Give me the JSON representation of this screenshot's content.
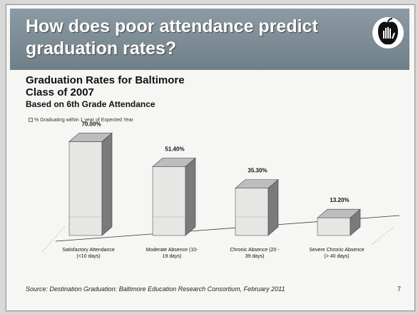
{
  "slide": {
    "title": "How does poor attendance predict graduation rates?",
    "source": "Source: Destination Graduation: Baltimore Education Research Consortium, February 2011",
    "page_number": "7"
  },
  "chart_data": {
    "type": "bar",
    "title": "Graduation Rates for Baltimore\nClass of 2007",
    "subtitle": "Based on 6th Grade Attendance",
    "legend": "% Graduating within 1 year of Expected Year",
    "categories": [
      "Satisfactory Attendance (<10 days)",
      "Moderate Absence (10- 19 days)",
      "Chronic Absence (20 - 39 days)",
      "Severe Chronic Absence (> 40 days)"
    ],
    "category_lines": [
      [
        "Satisfactory Attendance",
        "(<10 days)"
      ],
      [
        "Moderate Absence      (10-",
        "19 days)"
      ],
      [
        "Chronic Absence       (20 -",
        "39 days)"
      ],
      [
        "Severe Chronic Absence",
        "(> 40 days)"
      ]
    ],
    "values": [
      70.0,
      51.4,
      35.3,
      13.2
    ],
    "value_labels": [
      "70.00%",
      "51.40%",
      "35.30%",
      "13.20%"
    ],
    "ylim": [
      0,
      100
    ],
    "style": "3d",
    "colors": {
      "front": "#e6e6e4",
      "side": "#7a7a7a",
      "top": "#bdbdbd",
      "banner": "#7b8a93"
    }
  }
}
